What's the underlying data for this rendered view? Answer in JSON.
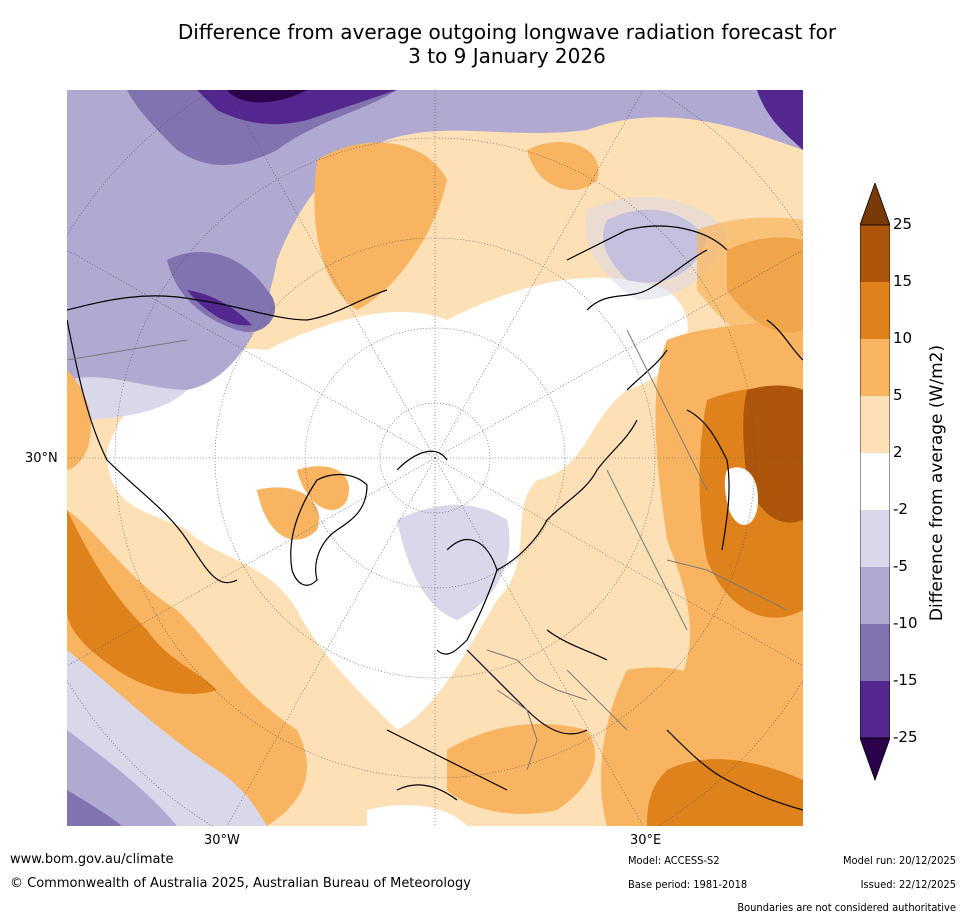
{
  "title_line1": "Difference from average outgoing longwave radiation forecast for",
  "title_line2": "3 to 9 January 2026",
  "lat_label": "30°N",
  "lon_labels": {
    "west": "30°W",
    "east": "30°E"
  },
  "colorbar": {
    "title": "Difference from average (W/m2)",
    "ticks": [
      "25",
      "15",
      "10",
      "5",
      "2",
      "-2",
      "-5",
      "-10",
      "-15",
      "-25"
    ],
    "colors": {
      "above_25": "#7a3a08",
      "c15_25": "#ad560b",
      "c10_15": "#e0821c",
      "c5_10": "#f8b460",
      "c2_5": "#fde0b6",
      "neutral": "#ffffff",
      "cm5_m2": "#d8d8ea",
      "cm10_m5": "#b0a9d2",
      "cm15_m10": "#8073b0",
      "cm25_m15": "#54278f",
      "below_m25": "#2d004b"
    }
  },
  "footer": {
    "url": "www.bom.gov.au/climate",
    "copyright": "© Commonwealth of Australia 2025, Australian Bureau of Meteorology",
    "model": "Model: ACCESS-S2",
    "base_period": "Base period: 1981-2018",
    "model_run": "Model run: 20/12/2025",
    "issued": "Issued: 22/12/2025",
    "disclaimer": "Boundaries are not considered authoritative"
  }
}
